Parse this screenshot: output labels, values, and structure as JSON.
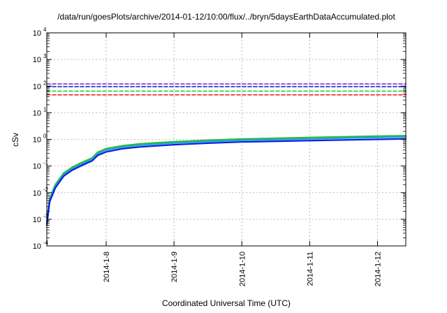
{
  "chart_data": {
    "type": "line",
    "title": "/data/run/goesPlots/archive/2014-01-12/10:00/flux/../bryn/5daysEarthDataAccumulated.plot",
    "xlabel": "Coordinated Universal Time (UTC)",
    "ylabel": "cSv",
    "yscale": "log",
    "ylim": [
      0.0001,
      10000
    ],
    "xlim": [
      "2014-01-07T03:00",
      "2014-01-12T10:00"
    ],
    "grid": true,
    "x_ticks": [
      "2014-1-8",
      "2014-1-9",
      "2014-1-10",
      "2014-1-11",
      "2014-1-12"
    ],
    "y_ticks": [
      {
        "value": 0.0001,
        "base": "10",
        "exp": "-4"
      },
      {
        "value": 0.001,
        "base": "10",
        "exp": "-3"
      },
      {
        "value": 0.01,
        "base": "10",
        "exp": "-2"
      },
      {
        "value": 0.1,
        "base": "10",
        "exp": "-1"
      },
      {
        "value": 1,
        "base": "10",
        "exp": "0"
      },
      {
        "value": 10,
        "base": "10",
        "exp": "1"
      },
      {
        "value": 100,
        "base": "10",
        "exp": "2"
      },
      {
        "value": 1000,
        "base": "10",
        "exp": "3"
      },
      {
        "value": 10000,
        "base": "10",
        "exp": "4"
      }
    ],
    "series": [
      {
        "color": "#2dbb2d",
        "style": "solid",
        "x": [
          "2014-01-07T03:00",
          "2014-01-07T04:00",
          "2014-01-07T06:00",
          "2014-01-07T09:00",
          "2014-01-07T12:00",
          "2014-01-07T15:00",
          "2014-01-07T18:00",
          "2014-01-07T19:00",
          "2014-01-07T21:00",
          "2014-01-08T00:00",
          "2014-01-08T06:00",
          "2014-01-08T12:00",
          "2014-01-09T00:00",
          "2014-01-09T12:00",
          "2014-01-10T00:00",
          "2014-01-11T00:00",
          "2014-01-12T00:00",
          "2014-01-12T10:00"
        ],
        "values": [
          0.0008,
          0.006,
          0.02,
          0.055,
          0.09,
          0.13,
          0.18,
          0.2,
          0.33,
          0.45,
          0.58,
          0.68,
          0.82,
          0.93,
          1.03,
          1.18,
          1.32,
          1.38
        ]
      },
      {
        "color": "#1fa3d8",
        "style": "solid",
        "x": [
          "2014-01-07T03:00",
          "2014-01-07T04:00",
          "2014-01-07T06:00",
          "2014-01-07T09:00",
          "2014-01-07T12:00",
          "2014-01-07T15:00",
          "2014-01-07T18:00",
          "2014-01-07T19:00",
          "2014-01-07T21:00",
          "2014-01-08T00:00",
          "2014-01-08T06:00",
          "2014-01-08T12:00",
          "2014-01-09T00:00",
          "2014-01-09T12:00",
          "2014-01-10T00:00",
          "2014-01-11T00:00",
          "2014-01-12T00:00",
          "2014-01-12T10:00"
        ],
        "values": [
          0.0007,
          0.0052,
          0.018,
          0.048,
          0.08,
          0.115,
          0.16,
          0.18,
          0.29,
          0.4,
          0.52,
          0.6,
          0.73,
          0.83,
          0.92,
          1.05,
          1.18,
          1.23
        ]
      },
      {
        "color": "#0a1ee6",
        "style": "solid",
        "x": [
          "2014-01-07T03:00",
          "2014-01-07T04:00",
          "2014-01-07T06:00",
          "2014-01-07T09:00",
          "2014-01-07T12:00",
          "2014-01-07T15:00",
          "2014-01-07T18:00",
          "2014-01-07T19:00",
          "2014-01-07T21:00",
          "2014-01-08T00:00",
          "2014-01-08T06:00",
          "2014-01-08T12:00",
          "2014-01-09T00:00",
          "2014-01-09T12:00",
          "2014-01-10T00:00",
          "2014-01-11T00:00",
          "2014-01-12T00:00",
          "2014-01-12T10:00"
        ],
        "values": [
          0.0006,
          0.0045,
          0.015,
          0.042,
          0.07,
          0.1,
          0.14,
          0.155,
          0.25,
          0.34,
          0.45,
          0.52,
          0.63,
          0.72,
          0.8,
          0.9,
          1.0,
          1.05
        ]
      },
      {
        "color": "#8b2be2",
        "style": "dashed",
        "x": [
          "2014-01-07T03:00",
          "2014-01-12T10:00"
        ],
        "values": [
          120,
          120
        ]
      },
      {
        "color": "#1f2fd0",
        "style": "dashed",
        "x": [
          "2014-01-07T03:00",
          "2014-01-12T10:00"
        ],
        "values": [
          95,
          95
        ]
      },
      {
        "color": "#22cc22",
        "style": "dashed",
        "x": [
          "2014-01-07T03:00",
          "2014-01-12T10:00"
        ],
        "values": [
          65,
          65
        ]
      },
      {
        "color": "#e31a1c",
        "style": "dashed",
        "x": [
          "2014-01-07T03:00",
          "2014-01-12T10:00"
        ],
        "values": [
          47,
          47
        ]
      }
    ]
  }
}
